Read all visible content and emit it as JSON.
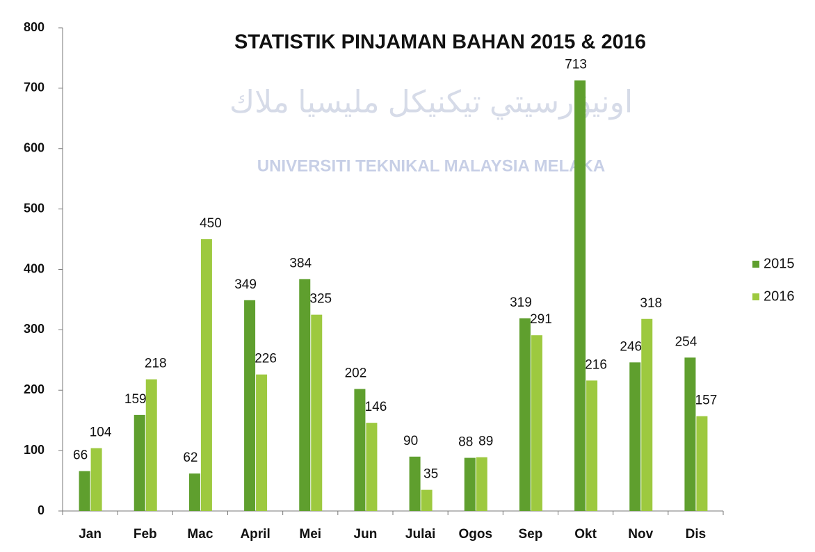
{
  "chart_data": {
    "type": "bar",
    "title": "STATISTIK PINJAMAN BAHAN 2015 & 2016",
    "watermark": [
      "UNIVERSITI TEKNIKAL MALAYSIA MELAKA",
      "اونيۏرسيتي تيكنيكل مليسيا ملاك"
    ],
    "categories": [
      "Jan",
      "Feb",
      "Mac",
      "April",
      "Mei",
      "Jun",
      "Julai",
      "Ogos",
      "Sep",
      "Okt",
      "Nov",
      "Dis"
    ],
    "series": [
      {
        "name": "2015",
        "color": "#5f9f2e",
        "values": [
          66,
          159,
          62,
          349,
          384,
          202,
          90,
          88,
          319,
          713,
          246,
          254
        ]
      },
      {
        "name": "2016",
        "color": "#9dc93f",
        "values": [
          104,
          218,
          450,
          226,
          325,
          146,
          35,
          89,
          291,
          216,
          318,
          157
        ]
      }
    ],
    "ylim": [
      0,
      800
    ],
    "yticks": [
      0,
      100,
      200,
      300,
      400,
      500,
      600,
      700,
      800
    ],
    "grid": false,
    "legend": "right"
  }
}
